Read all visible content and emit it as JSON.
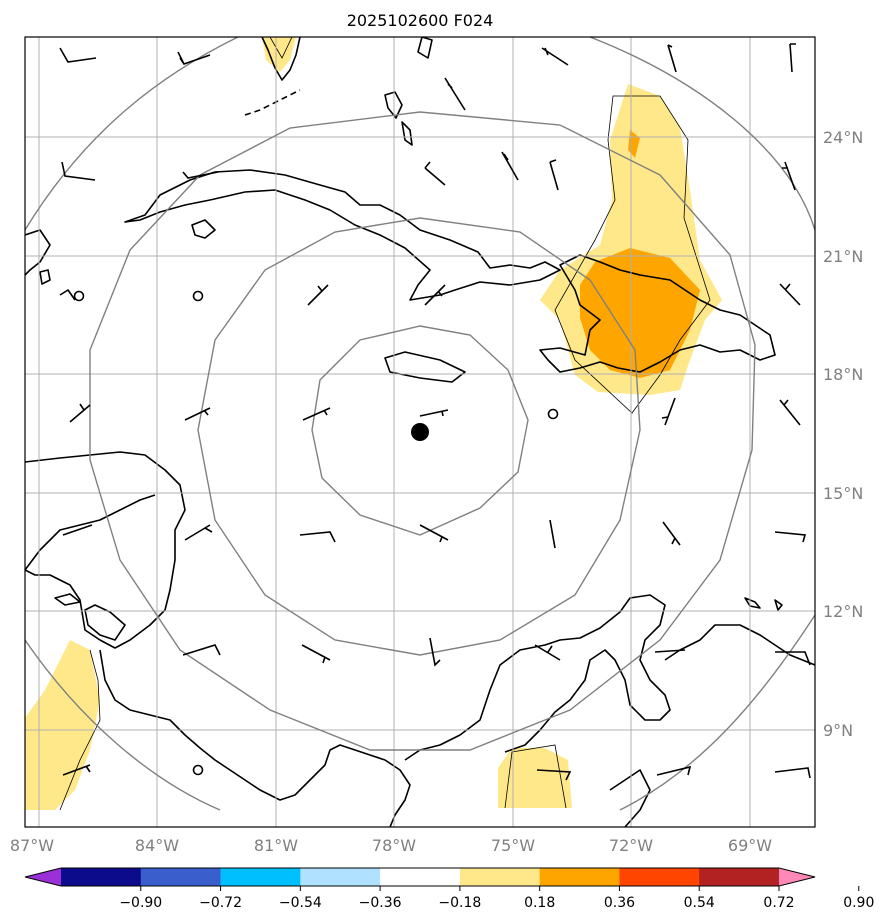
{
  "title": "2025102600 F024",
  "lon_labels": [
    "87°W",
    "84°W",
    "81°W",
    "78°W",
    "75°W",
    "72°W",
    "69°W"
  ],
  "lat_labels": [
    "24°N",
    "21°N",
    "18°N",
    "15°N",
    "12°N",
    "9°N"
  ],
  "colorbar": {
    "ticks": [
      "−0.90",
      "−0.72",
      "−0.54",
      "−0.36",
      "−0.18",
      "0.18",
      "0.36",
      "0.54",
      "0.72",
      "0.90"
    ],
    "colors": [
      "#9b30d8",
      "#0b0b8c",
      "#3a5fcd",
      "#00bfff",
      "#b0e2ff",
      "#ffffff",
      "#ffe88a",
      "#ffa500",
      "#ff4500",
      "#b22222",
      "#ff88b8"
    ]
  },
  "center_marker": "storm-center",
  "map_colors": {
    "shade_light": "#ffe88a",
    "shade_mid": "#ffa500"
  }
}
